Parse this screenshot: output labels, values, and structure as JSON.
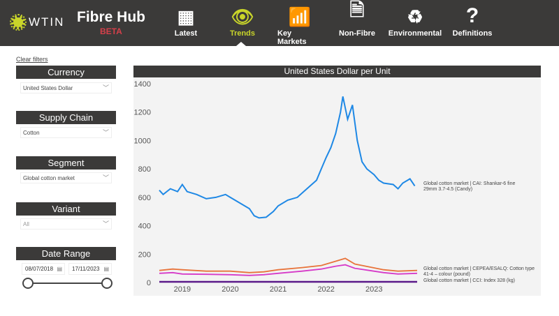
{
  "header": {
    "logo": "WTIN",
    "title": "Fibre Hub",
    "badge": "BETA",
    "nav": [
      {
        "label": "Latest",
        "icon": "calendar-icon"
      },
      {
        "label": "Trends",
        "icon": "eye-icon",
        "active": true
      },
      {
        "label": "Key Markets",
        "icon": "bar-chart-icon"
      },
      {
        "label": "Non-Fibre",
        "icon": "document-cycle-icon"
      },
      {
        "label": "Environmental",
        "icon": "recycle-icon"
      },
      {
        "label": "Definitions",
        "icon": "question-icon"
      }
    ]
  },
  "filters": {
    "clear": "Clear filters",
    "currency": {
      "label": "Currency",
      "value": "United States Dollar"
    },
    "supply_chain": {
      "label": "Supply Chain",
      "value": "Cotton"
    },
    "segment": {
      "label": "Segment",
      "value": "Global cotton market"
    },
    "variant": {
      "label": "Variant",
      "value": "All"
    },
    "date_range": {
      "label": "Date Range",
      "start": "08/07/2018",
      "end": "17/11/2023",
      "slider_start": 0,
      "slider_end": 1
    }
  },
  "colors": {
    "blue": "#1e88e5",
    "orange": "#e8733a",
    "pink": "#d63ac8",
    "purple": "#5b1a8a"
  },
  "chart_data": {
    "type": "line",
    "title": "United States Dollar per Unit",
    "ylim": [
      0,
      1400
    ],
    "yticks": [
      0,
      200,
      400,
      600,
      800,
      1000,
      1200,
      1400
    ],
    "xticks": [
      "2019",
      "2020",
      "2021",
      "2022",
      "2023"
    ],
    "xlim": [
      2018.52,
      2023.9
    ],
    "series": [
      {
        "name": "Global cotton market | CAI: Shankar-6 fine 29mm 3.7-4.5 (Candy)",
        "color": "#1e88e5",
        "x": [
          2018.52,
          2018.6,
          2018.75,
          2018.9,
          2019.0,
          2019.1,
          2019.3,
          2019.5,
          2019.7,
          2019.9,
          2020.0,
          2020.2,
          2020.4,
          2020.5,
          2020.6,
          2020.75,
          2020.9,
          2021.0,
          2021.2,
          2021.4,
          2021.6,
          2021.8,
          2021.9,
          2022.0,
          2022.1,
          2022.2,
          2022.3,
          2022.35,
          2022.45,
          2022.55,
          2022.65,
          2022.75,
          2022.85,
          2023.0,
          2023.1,
          2023.2,
          2023.4,
          2023.5,
          2023.6,
          2023.75,
          2023.85
        ],
        "y": [
          650,
          620,
          660,
          640,
          690,
          640,
          620,
          590,
          600,
          620,
          600,
          560,
          520,
          470,
          455,
          460,
          500,
          540,
          580,
          600,
          660,
          720,
          800,
          880,
          950,
          1050,
          1200,
          1310,
          1150,
          1250,
          1000,
          850,
          800,
          760,
          720,
          700,
          690,
          660,
          700,
          730,
          680
        ]
      },
      {
        "name": "Global cotton market | CEPEA/ESALQ: Cotton type 41-4 – colour (pound)",
        "color": "#e8733a",
        "x": [
          2018.52,
          2018.8,
          2019.0,
          2019.5,
          2020.0,
          2020.4,
          2020.7,
          2021.0,
          2021.5,
          2021.9,
          2022.2,
          2022.4,
          2022.6,
          2022.9,
          2023.2,
          2023.5,
          2023.9
        ],
        "y": [
          85,
          95,
          90,
          80,
          80,
          70,
          75,
          90,
          105,
          120,
          150,
          170,
          130,
          110,
          90,
          80,
          85
        ]
      },
      {
        "name": "",
        "color": "#d63ac8",
        "x": [
          2018.52,
          2018.8,
          2019.0,
          2019.5,
          2020.0,
          2020.4,
          2020.7,
          2021.0,
          2021.5,
          2021.9,
          2022.2,
          2022.4,
          2022.6,
          2022.9,
          2023.2,
          2023.5,
          2023.9
        ],
        "y": [
          65,
          70,
          60,
          58,
          55,
          50,
          55,
          65,
          80,
          95,
          115,
          125,
          100,
          85,
          70,
          60,
          65
        ]
      },
      {
        "name": "Global cotton market | CCI: Index 328 (kg)",
        "color": "#5b1a8a",
        "x": [
          2018.52,
          2023.9
        ],
        "y": [
          5,
          5
        ]
      }
    ]
  }
}
